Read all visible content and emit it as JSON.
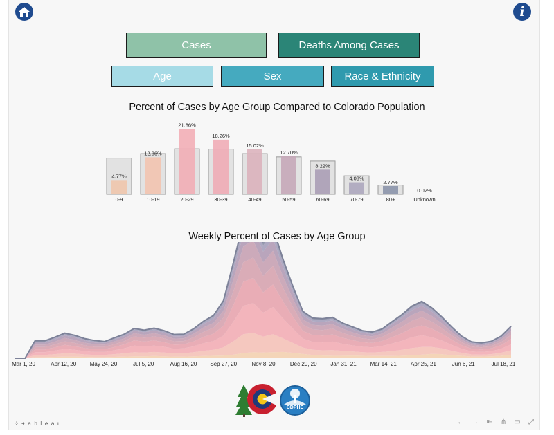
{
  "buttons": {
    "cases": "Cases",
    "deaths": "Deaths Among Cases",
    "age": "Age",
    "sex": "Sex",
    "race": "Race & Ethnicity"
  },
  "icons": {
    "home": "home-icon",
    "info": "info-icon",
    "info_glyph": "i"
  },
  "colors": {
    "cases_btn": "#8fc2a8",
    "deaths_btn": "#2b8577",
    "age_btn": "#a6dbe6",
    "sex_btn": "#45aabf",
    "race_btn": "#2f9aae",
    "nav_icon": "#1f4b8f"
  },
  "chart_data": [
    {
      "type": "bar",
      "title": "Percent of Cases by Age Group Compared to Colorado Population",
      "categories": [
        "0-9",
        "10-19",
        "20-29",
        "30-39",
        "40-49",
        "50-59",
        "60-69",
        "70-79",
        "80+",
        "Unknown"
      ],
      "series": [
        {
          "values": [
            4.77,
            12.36,
            21.86,
            18.26,
            15.02,
            12.7,
            8.22,
            4.03,
            2.77,
            0.02
          ],
          "labels": [
            "4.77%",
            "12.36%",
            "21.86%",
            "18.26%",
            "15.02%",
            "12.70%",
            "8.22%",
            "4.03%",
            "2.77%",
            "0.02%"
          ],
          "colors": [
            "#f0c7ad",
            "#f3c4b0",
            "#f2aeb6",
            "#efacb6",
            "#dcb3bd",
            "#c6a8b9",
            "#ab9fb6",
            "#ada7be",
            "#8c95ab",
            "#a0a0a0"
          ]
        },
        {
          "values": [
            12.1,
            13.6,
            15.2,
            15.1,
            13.6,
            12.5,
            11.1,
            6.2,
            3.1,
            null
          ]
        }
      ],
      "ylim": [
        0,
        24
      ]
    },
    {
      "type": "area",
      "title": "Weekly Percent of Cases by Age Group",
      "x_ticks": [
        "Mar 1, 20",
        "Apr 12, 20",
        "May 24, 20",
        "Jul 5, 20",
        "Aug 16, 20",
        "Sep 27, 20",
        "Nov 8, 20",
        "Dec 20, 20",
        "Jan 31, 21",
        "Mar 14, 21",
        "Apr 25, 21",
        "Jun 6, 21",
        "Jul 18, 21"
      ],
      "series": [
        {
          "color": "#f3d3b4",
          "values": [
            0,
            0,
            0.4,
            0.4,
            0.5,
            0.6,
            0.6,
            0.5,
            0.4,
            0.4,
            0.5,
            0.6,
            0.7,
            0.7,
            0.8,
            0.7,
            0.6,
            0.6,
            0.7,
            0.8,
            0.9,
            1.0,
            1.3,
            1.9,
            2.2,
            2.1,
            2.2,
            2.3,
            2.0,
            1.6,
            1.2,
            1.0,
            0.9,
            0.9,
            1.0,
            0.9,
            0.8,
            0.8,
            0.8,
            0.9,
            1.1,
            1.3,
            1.6,
            1.5,
            1.1,
            0.9,
            0.6,
            0.6,
            0.7,
            0.9,
            1.3
          ]
        },
        {
          "color": "#f4c5bc",
          "values": [
            0,
            0,
            0.8,
            0.8,
            1.0,
            1.2,
            1.1,
            0.9,
            0.8,
            0.8,
            1.0,
            1.2,
            1.5,
            1.4,
            1.5,
            1.4,
            1.2,
            1.2,
            1.5,
            1.9,
            2.2,
            3.0,
            4.9,
            6.9,
            7.1,
            5.8,
            6.6,
            5.0,
            3.6,
            2.3,
            1.9,
            1.9,
            2.1,
            1.8,
            1.5,
            1.3,
            1.3,
            1.5,
            1.8,
            2.2,
            2.6,
            2.8,
            2.5,
            2.1,
            1.6,
            1.1,
            0.8,
            0.7,
            0.8,
            1.1,
            1.6
          ]
        },
        {
          "color": "#f2b1b8",
          "values": [
            0,
            0,
            1.0,
            1.0,
            1.3,
            1.6,
            1.4,
            1.2,
            1.1,
            1.1,
            1.4,
            1.8,
            2.4,
            2.2,
            2.3,
            2.1,
            1.7,
            1.8,
            2.2,
            2.8,
            3.2,
            4.3,
            7.2,
            10.4,
            10.9,
            8.8,
            9.9,
            7.3,
            5.2,
            3.3,
            2.9,
            2.9,
            3.1,
            2.6,
            2.2,
            2.0,
            1.9,
            2.2,
            2.8,
            3.3,
            4.0,
            4.3,
            3.6,
            2.9,
            2.2,
            1.5,
            1.1,
            1.0,
            1.1,
            1.5,
            2.2
          ]
        },
        {
          "color": "#e8a9b2",
          "values": [
            0,
            0,
            1.0,
            1.0,
            1.2,
            1.5,
            1.3,
            1.1,
            1.0,
            1.0,
            1.2,
            1.5,
            1.9,
            1.8,
            1.9,
            1.7,
            1.5,
            1.5,
            1.8,
            2.3,
            2.7,
            3.6,
            6.1,
            8.8,
            9.2,
            7.4,
            8.3,
            6.2,
            4.4,
            2.8,
            2.5,
            2.5,
            2.6,
            2.2,
            1.9,
            1.7,
            1.6,
            1.8,
            2.3,
            2.8,
            3.3,
            3.6,
            3.1,
            2.5,
            1.9,
            1.3,
            1.0,
            0.9,
            1.0,
            1.3,
            1.9
          ]
        },
        {
          "color": "#d8a8b3",
          "values": [
            0,
            0,
            0.9,
            0.9,
            1.1,
            1.3,
            1.2,
            1.0,
            0.9,
            0.9,
            1.1,
            1.2,
            1.5,
            1.4,
            1.5,
            1.4,
            1.2,
            1.2,
            1.5,
            1.9,
            2.2,
            3.0,
            5.0,
            7.1,
            7.5,
            6.0,
            6.8,
            5.0,
            3.6,
            2.3,
            2.0,
            2.0,
            2.1,
            1.8,
            1.6,
            1.4,
            1.3,
            1.5,
            1.9,
            2.3,
            2.7,
            3.0,
            2.6,
            2.1,
            1.6,
            1.1,
            0.8,
            0.8,
            0.9,
            1.1,
            1.6
          ]
        },
        {
          "color": "#c9a5b6",
          "values": [
            0,
            0,
            0.9,
            0.9,
            1.0,
            1.2,
            1.1,
            1.0,
            0.9,
            0.8,
            0.9,
            1.0,
            1.2,
            1.1,
            1.2,
            1.1,
            1.0,
            1.0,
            1.3,
            1.6,
            1.8,
            2.5,
            4.2,
            5.9,
            6.2,
            5.0,
            5.6,
            4.2,
            3.0,
            1.9,
            1.7,
            1.7,
            1.7,
            1.5,
            1.3,
            1.1,
            1.1,
            1.2,
            1.6,
            1.9,
            2.2,
            2.4,
            2.1,
            1.7,
            1.3,
            0.9,
            0.7,
            0.6,
            0.7,
            0.9,
            1.3
          ]
        },
        {
          "color": "#b5a0b8",
          "values": [
            0,
            0,
            0.7,
            0.7,
            0.8,
            0.9,
            0.9,
            0.8,
            0.7,
            0.6,
            0.7,
            0.8,
            0.9,
            0.9,
            1.0,
            0.9,
            0.8,
            0.8,
            1.0,
            1.2,
            1.4,
            1.9,
            3.2,
            4.6,
            4.8,
            3.9,
            4.3,
            3.2,
            2.3,
            1.5,
            1.3,
            1.3,
            1.3,
            1.1,
            1.0,
            0.9,
            0.8,
            0.9,
            1.2,
            1.4,
            1.7,
            1.8,
            1.6,
            1.3,
            1.0,
            0.7,
            0.5,
            0.5,
            0.5,
            0.7,
            1.0
          ]
        },
        {
          "color": "#a9a4bf",
          "values": [
            0,
            0,
            0.4,
            0.4,
            0.5,
            0.5,
            0.5,
            0.4,
            0.4,
            0.3,
            0.4,
            0.4,
            0.5,
            0.5,
            0.5,
            0.5,
            0.4,
            0.4,
            0.5,
            0.7,
            0.8,
            1.1,
            1.9,
            2.7,
            2.8,
            2.3,
            2.5,
            1.9,
            1.3,
            0.9,
            0.7,
            0.7,
            0.7,
            0.6,
            0.6,
            0.5,
            0.5,
            0.5,
            0.6,
            0.7,
            0.9,
            1.0,
            0.9,
            0.7,
            0.5,
            0.4,
            0.3,
            0.3,
            0.3,
            0.4,
            0.5
          ]
        },
        {
          "color": "#8e93aa",
          "values": [
            0,
            0,
            0.3,
            0.3,
            0.3,
            0.4,
            0.3,
            0.3,
            0.3,
            0.2,
            0.3,
            0.3,
            0.3,
            0.3,
            0.3,
            0.3,
            0.3,
            0.3,
            0.3,
            0.4,
            0.5,
            0.7,
            1.2,
            1.7,
            1.8,
            1.5,
            1.6,
            1.2,
            0.9,
            0.6,
            0.5,
            0.5,
            0.5,
            0.4,
            0.4,
            0.3,
            0.3,
            0.3,
            0.4,
            0.5,
            0.6,
            0.6,
            0.5,
            0.4,
            0.3,
            0.2,
            0.2,
            0.2,
            0.2,
            0.2,
            0.3
          ]
        }
      ]
    }
  ],
  "logos": {
    "cdphe_text": "CDPHE"
  },
  "footer": {
    "brand": "+ a b l e a u"
  }
}
